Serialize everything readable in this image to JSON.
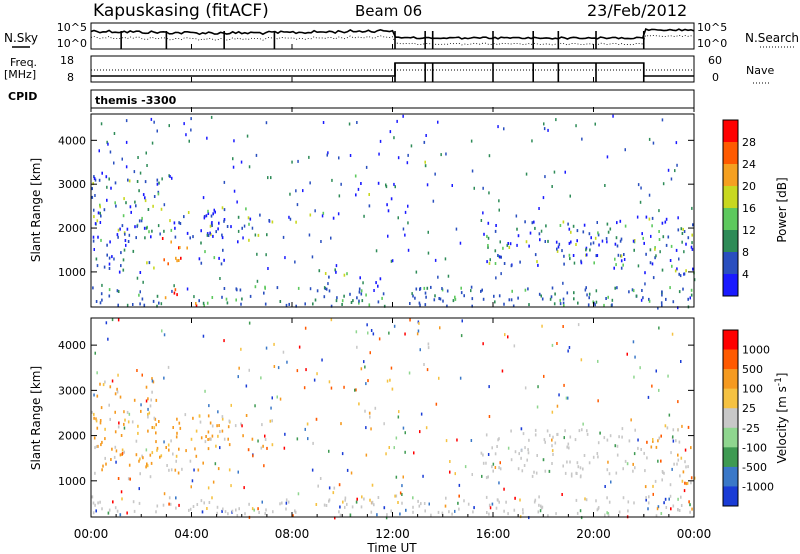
{
  "header": {
    "station": "Kapuskasing (fitACF)",
    "beam": "Beam 06",
    "date": "23/Feb/2012"
  },
  "top_strip": {
    "nsky_label": "N.Sky",
    "nsky_ticks": [
      "10^5",
      "10^0"
    ],
    "nsearch_label": "N.Search",
    "nsearch_ticks": [
      "10^5",
      "10^0"
    ],
    "freq_label": "Freq.",
    "freq_unit": "[MHz]",
    "freq_ticks": [
      "18",
      "8"
    ],
    "nave_label": "Nave",
    "nave_ticks": [
      "60",
      "0"
    ],
    "cpid_label": "CPID",
    "cpid_value": "themis -3300"
  },
  "chart_data": [
    {
      "type": "heatmap",
      "name": "power",
      "ylabel": "Slant Range [km]",
      "yticks": [
        "1000",
        "2000",
        "3000",
        "4000"
      ],
      "ylim": [
        200,
        4600
      ],
      "xlim_hours": [
        0,
        24
      ],
      "colorbar_label": "Power [dB]",
      "colorbar_ticks": [
        "4",
        "8",
        "12",
        "16",
        "20",
        "24",
        "28"
      ],
      "colors": [
        "#1a1aff",
        "#2a4fbf",
        "#2e8b57",
        "#5ec95e",
        "#c8d820",
        "#f5a020",
        "#ff5a00",
        "#ff0000"
      ]
    },
    {
      "type": "heatmap",
      "name": "velocity",
      "ylabel": "Slant Range [km]",
      "yticks": [
        "1000",
        "2000",
        "3000",
        "4000"
      ],
      "ylim": [
        200,
        4600
      ],
      "xlim_hours": [
        0,
        24
      ],
      "colorbar_label": "Velocity [m s",
      "colorbar_label_sup": "-1",
      "colorbar_label_end": "]",
      "colorbar_ticks": [
        "1000",
        "500",
        "100",
        "25",
        "-25",
        "-100",
        "-500",
        "-1000"
      ],
      "colors": [
        "#1a3cd6",
        "#3a78c8",
        "#3e9a52",
        "#8fd68f",
        "#c8c8c8",
        "#f5c242",
        "#f59a20",
        "#ff5a00",
        "#ff0000"
      ]
    }
  ],
  "xaxis": {
    "label": "Time UT",
    "ticks": [
      "00:00",
      "04:00",
      "08:00",
      "12:00",
      "16:00",
      "20:00",
      "00:00"
    ]
  }
}
